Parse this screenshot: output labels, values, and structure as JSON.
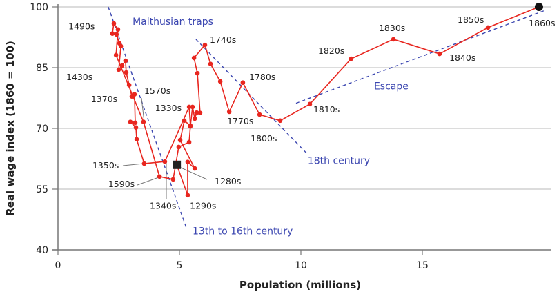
{
  "chart_data": {
    "type": "line",
    "xlabel": "Population (millions)",
    "ylabel": "Real wage index (1860 = 100)",
    "xlim": [
      0,
      20
    ],
    "ylim": [
      40,
      100
    ],
    "xticks": [
      0,
      5,
      10,
      15
    ],
    "yticks": [
      40,
      55,
      70,
      85,
      100
    ],
    "grid": "horizontal",
    "colors": {
      "series": "#e8261f",
      "trend": "#3b46b0",
      "grid": "#c8c8c8",
      "axis": "#777777",
      "marker_start": "#222222",
      "marker_end": "#111111"
    },
    "series": [
      {
        "x": [
          4.89,
          5.34,
          5.34,
          5.63,
          5.03,
          5.2,
          5.45,
          5.4,
          4.4,
          3.55,
          3.24,
          3.21,
          2.98,
          3.18,
          3.15,
          3.04,
          2.93,
          2.81,
          2.78,
          2.64,
          2.5,
          2.59,
          2.53,
          2.41,
          2.24,
          2.3,
          2.47,
          2.39,
          3.52,
          4.18,
          4.74,
          4.97,
          5.4,
          5.45,
          5.54,
          5.63,
          5.71,
          5.85,
          5.74,
          5.6,
          6.05,
          6.28,
          6.68,
          7.05,
          7.61,
          8.3,
          9.15,
          10.37,
          12.07,
          13.81,
          15.71,
          17.7,
          19.8
        ],
        "y": [
          61.0,
          53.5,
          61.7,
          60.1,
          67.1,
          71.9,
          70.7,
          75.3,
          61.8,
          61.3,
          67.3,
          70.2,
          71.6,
          71.4,
          78.4,
          77.9,
          80.7,
          83.8,
          86.7,
          85.5,
          84.5,
          90.3,
          91.0,
          93.2,
          93.4,
          95.9,
          94.4,
          88.1,
          71.6,
          58.1,
          57.4,
          65.4,
          66.6,
          70.5,
          75.3,
          72.4,
          73.9,
          73.8,
          83.6,
          87.4,
          90.6,
          85.9,
          81.6,
          74.1,
          81.3,
          73.4,
          71.9,
          76.0,
          87.2,
          92.0,
          88.4,
          94.9,
          100.0
        ]
      }
    ],
    "trend_lines": [
      {
        "label": "13th to 16th century",
        "x": [
          2.07,
          5.28
        ],
        "y": [
          100,
          45.5
        ],
        "label_at": [
          5.54,
          43.8
        ]
      },
      {
        "label": "18th century",
        "x": [
          5.68,
          10.23
        ],
        "y": [
          92.0,
          63.9
        ],
        "label_at": [
          10.28,
          61.2
        ]
      },
      {
        "label": "Escape",
        "x": [
          9.8,
          20.03
        ],
        "y": [
          76.2,
          99.1
        ],
        "label_at": [
          13.01,
          79.6
        ]
      }
    ],
    "title_annotation": {
      "text": "Malthusian traps",
      "at": [
        3.07,
        95.6
      ]
    },
    "point_labels": [
      {
        "text": "1490s",
        "at": [
          0.43,
          94.5
        ]
      },
      {
        "text": "1430s",
        "at": [
          0.34,
          81.9
        ]
      },
      {
        "text": "1370s",
        "at": [
          1.36,
          76.5
        ]
      },
      {
        "text": "1570s",
        "at": [
          3.55,
          78.5
        ]
      },
      {
        "text": "1330s",
        "at": [
          4.0,
          74.3
        ]
      },
      {
        "text": "1350s",
        "at": [
          1.42,
          60.1
        ]
      },
      {
        "text": "1590s",
        "at": [
          2.07,
          55.5
        ]
      },
      {
        "text": "1340s",
        "at": [
          3.78,
          50.1
        ]
      },
      {
        "text": "1290s",
        "at": [
          5.43,
          50.1
        ]
      },
      {
        "text": "1280s",
        "at": [
          6.45,
          56.2
        ]
      },
      {
        "text": "1740s",
        "at": [
          6.25,
          91.1
        ]
      },
      {
        "text": "1780s",
        "at": [
          7.87,
          81.9
        ]
      },
      {
        "text": "1770s",
        "at": [
          6.96,
          71.0
        ]
      },
      {
        "text": "1800s",
        "at": [
          7.93,
          66.8
        ]
      },
      {
        "text": "1810s",
        "at": [
          10.51,
          73.9
        ]
      },
      {
        "text": "1820s",
        "at": [
          10.71,
          88.4
        ]
      },
      {
        "text": "1830s",
        "at": [
          13.21,
          94.0
        ]
      },
      {
        "text": "1840s",
        "at": [
          16.11,
          86.7
        ]
      },
      {
        "text": "1850s",
        "at": [
          16.45,
          96.1
        ]
      },
      {
        "text": "1860s",
        "at": [
          19.38,
          95.2
        ]
      }
    ]
  }
}
